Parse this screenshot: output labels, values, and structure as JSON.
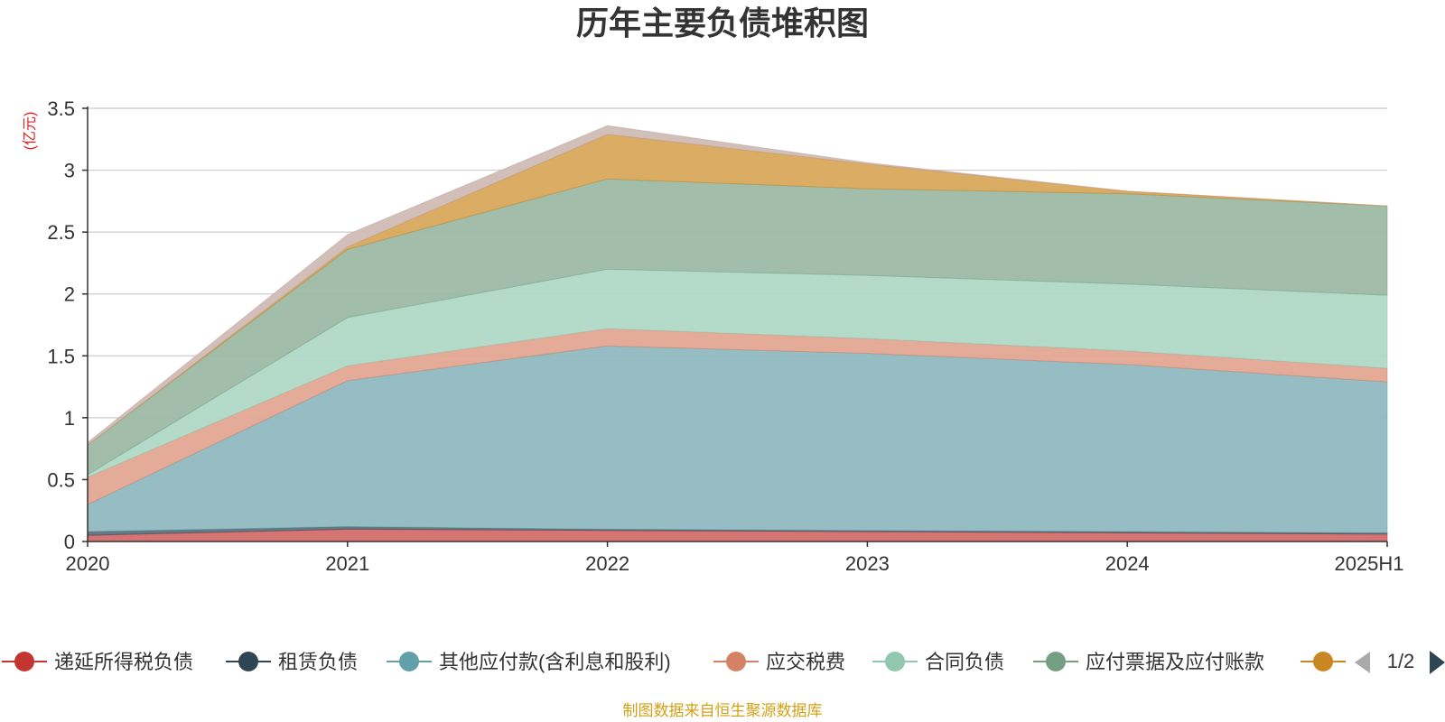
{
  "chart_data": {
    "type": "area",
    "stacked": true,
    "title": "历年主要负债堆积图",
    "unit_label": "(亿元)",
    "categories": [
      "2020",
      "2021",
      "2022",
      "2023",
      "2024",
      "2025H1"
    ],
    "ylim": [
      0,
      3.5
    ],
    "yticks": [
      "0",
      "0.5",
      "1",
      "1.5",
      "2",
      "2.5",
      "3",
      "3.5"
    ],
    "grid": true,
    "legend_position": "bottom",
    "series": [
      {
        "name": "递延所得税负债",
        "color": "#c23531",
        "area_color": "#d46b6b",
        "values": [
          0.05,
          0.1,
          0.09,
          0.08,
          0.07,
          0.06
        ]
      },
      {
        "name": "租赁负债",
        "color": "#2f4554",
        "area_color": "#5d7280",
        "values": [
          0.03,
          0.02,
          0.01,
          0.01,
          0.01,
          0.01
        ]
      },
      {
        "name": "其他应付款(含利息和股利)",
        "color": "#61a0a8",
        "area_color": "#8fb9c0",
        "values": [
          0.22,
          1.18,
          1.48,
          1.43,
          1.35,
          1.22
        ]
      },
      {
        "name": "应交税费",
        "color": "#d48265",
        "area_color": "#e3a693",
        "values": [
          0.22,
          0.12,
          0.14,
          0.12,
          0.11,
          0.11
        ]
      },
      {
        "name": "合同负债",
        "color": "#91c7ae",
        "area_color": "#b0d8c6",
        "values": [
          0.02,
          0.39,
          0.48,
          0.51,
          0.54,
          0.59
        ]
      },
      {
        "name": "应付票据及应付账款",
        "color": "#749f83",
        "area_color": "#9db9a5",
        "values": [
          0.24,
          0.55,
          0.73,
          0.7,
          0.73,
          0.72
        ]
      },
      {
        "name": "",
        "color": "#ca8622",
        "area_color": "#d9a85c",
        "values": [
          0.0,
          0.02,
          0.36,
          0.2,
          0.02,
          0.0
        ]
      },
      {
        "name": "",
        "color": "#bda29a",
        "area_color": "#d0bcb6",
        "values": [
          0.02,
          0.1,
          0.07,
          0.01,
          0.0,
          0.0
        ]
      }
    ]
  },
  "legend": {
    "page_indicator": "1/2"
  },
  "footer": {
    "source_text": "制图数据来自恒生聚源数据库"
  }
}
